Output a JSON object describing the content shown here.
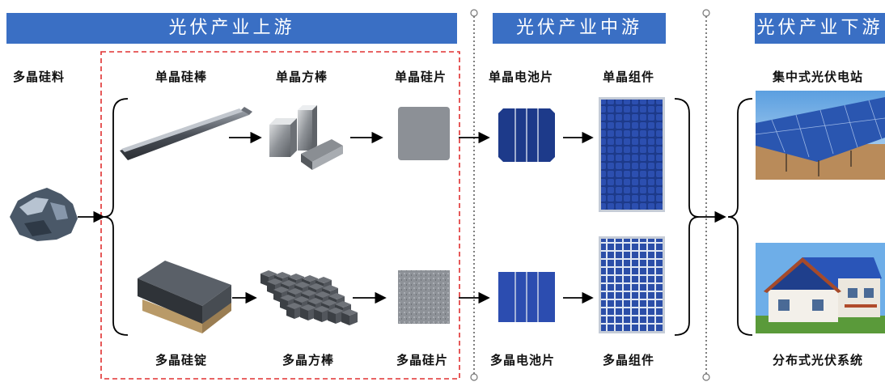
{
  "sections": {
    "upstream": "光伏产业上游",
    "midstream": "光伏产业中游",
    "downstream": "光伏产业下游"
  },
  "labels": {
    "polysilicon": "多晶硅料",
    "mono_rod": "单晶硅棒",
    "mono_square": "单晶方棒",
    "mono_wafer": "单晶硅片",
    "mono_cell": "单晶电池片",
    "mono_module": "单晶组件",
    "central_plant": "集中式光伏电站",
    "poly_ingot": "多晶硅锭",
    "poly_square": "多晶方棒",
    "poly_wafer": "多晶硅片",
    "poly_cell": "多晶电池片",
    "poly_module": "多晶组件",
    "distributed": "分布式光伏系统"
  },
  "colors": {
    "banner": "#3a6fc4",
    "dashed_box": "#e03030",
    "cell_blue": "#1d3a8a"
  }
}
